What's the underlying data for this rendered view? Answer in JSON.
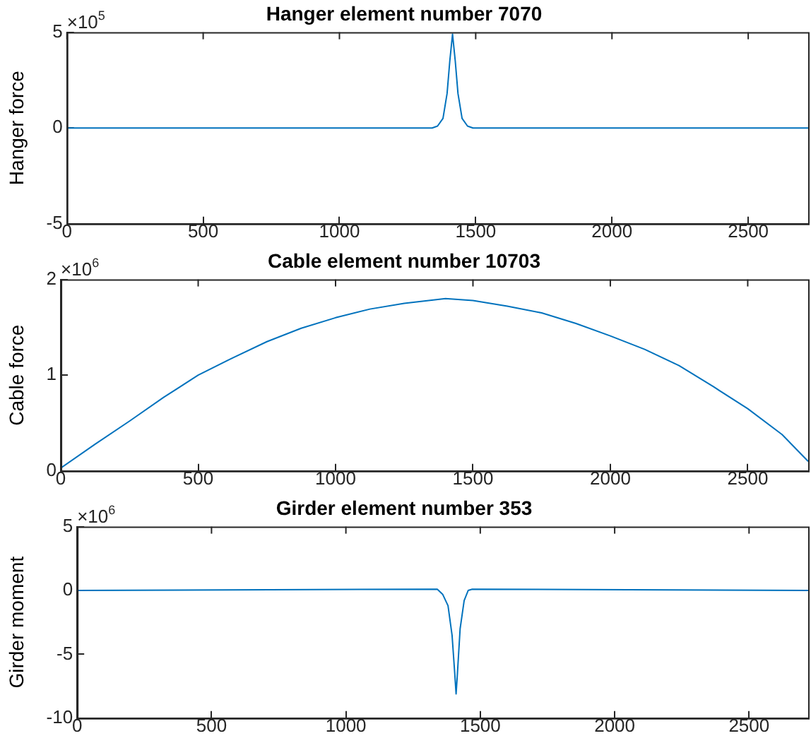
{
  "chart_data": [
    {
      "type": "line",
      "title": "Hanger element number 7070",
      "ylabel": "Hanger force",
      "annotations": [
        "×10$^{5}$"
      ],
      "xlim": [
        0,
        2720
      ],
      "xticks": [
        0,
        500,
        1000,
        1500,
        2000,
        2500
      ],
      "ylim": [
        -5,
        5
      ],
      "yticks": [
        -5,
        0,
        5
      ],
      "grid": false,
      "legend": false,
      "x": [
        0,
        1340,
        1360,
        1380,
        1395,
        1405,
        1415,
        1425,
        1435,
        1450,
        1470,
        1490,
        2720
      ],
      "series": [
        {
          "color": "#0072bd",
          "values": [
            0,
            0,
            0.1,
            0.5,
            1.8,
            3.5,
            4.9,
            3.5,
            1.8,
            0.5,
            0.1,
            0,
            0
          ]
        }
      ]
    },
    {
      "type": "line",
      "title": "Cable element number 10703",
      "ylabel": "Cable force",
      "annotations": [
        "×10$^{6}$"
      ],
      "xlim": [
        0,
        2720
      ],
      "xticks": [
        0,
        500,
        1000,
        1500,
        2000,
        2500
      ],
      "ylim": [
        0,
        2
      ],
      "yticks": [
        0,
        1,
        2
      ],
      "grid": false,
      "legend": false,
      "x": [
        0,
        125,
        250,
        375,
        500,
        625,
        750,
        875,
        1000,
        1125,
        1250,
        1400,
        1500,
        1625,
        1750,
        1875,
        2000,
        2125,
        2250,
        2375,
        2500,
        2625,
        2720
      ],
      "series": [
        {
          "color": "#0072bd",
          "values": [
            0.03,
            0.28,
            0.52,
            0.77,
            1.0,
            1.18,
            1.35,
            1.49,
            1.6,
            1.69,
            1.75,
            1.8,
            1.78,
            1.72,
            1.65,
            1.54,
            1.41,
            1.27,
            1.1,
            0.88,
            0.65,
            0.38,
            0.1
          ]
        }
      ]
    },
    {
      "type": "line",
      "title": "Girder element number 353",
      "ylabel": "Girder moment",
      "annotations": [
        "×10$^{6}$"
      ],
      "xlim": [
        0,
        2720
      ],
      "xticks": [
        0,
        500,
        1000,
        1500,
        2000,
        2500
      ],
      "ylim": [
        -10,
        5
      ],
      "yticks": [
        -10,
        -5,
        0,
        5
      ],
      "grid": false,
      "legend": false,
      "x": [
        0,
        1340,
        1360,
        1380,
        1395,
        1405,
        1410,
        1415,
        1425,
        1440,
        1455,
        1470,
        2720
      ],
      "series": [
        {
          "color": "#0072bd",
          "values": [
            0,
            0.1,
            -0.3,
            -1.2,
            -3.5,
            -6.5,
            -8.1,
            -6.5,
            -3,
            -0.8,
            0,
            0.1,
            0
          ]
        }
      ]
    }
  ]
}
